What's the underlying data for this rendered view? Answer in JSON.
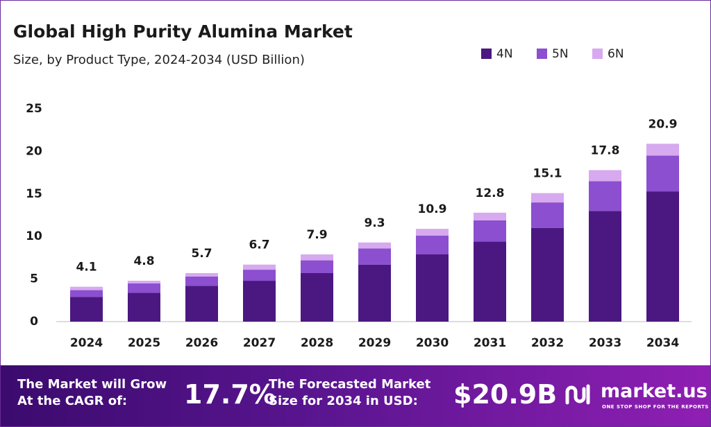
{
  "chart_data": {
    "type": "stacked-bar",
    "title": "Global High Purity Alumina Market",
    "subtitle": "Size, by Product Type, 2024-2034 (USD Billion)",
    "categories": [
      "2024",
      "2025",
      "2026",
      "2027",
      "2028",
      "2029",
      "2030",
      "2031",
      "2032",
      "2033",
      "2034"
    ],
    "series": [
      {
        "name": "4N",
        "color": "#4b1781",
        "values": [
          2.9,
          3.4,
          4.2,
          4.8,
          5.7,
          6.7,
          7.9,
          9.4,
          11.0,
          13.0,
          15.3
        ]
      },
      {
        "name": "5N",
        "color": "#8b4fd0",
        "values": [
          0.8,
          1.1,
          1.1,
          1.3,
          1.5,
          1.9,
          2.2,
          2.5,
          3.0,
          3.5,
          4.2
        ]
      },
      {
        "name": "6N",
        "color": "#d7a9ef",
        "values": [
          0.4,
          0.3,
          0.4,
          0.6,
          0.7,
          0.7,
          0.8,
          0.9,
          1.1,
          1.3,
          1.4
        ]
      }
    ],
    "totals": [
      4.1,
      4.8,
      5.7,
      6.7,
      7.9,
      9.3,
      10.9,
      12.8,
      15.1,
      17.8,
      20.9
    ],
    "ylim": [
      0,
      25
    ],
    "yticks": [
      0,
      5,
      10,
      15,
      20,
      25
    ],
    "grid": false,
    "legend": "top-right"
  },
  "footer": {
    "cagr_text": [
      "The Market will Grow",
      "At the CAGR of:"
    ],
    "cagr": "17.7%",
    "forecast_text": [
      "The Forecasted Market",
      "Size for 2034 in USD:"
    ],
    "forecast": "$20.9B",
    "brand": "market.us",
    "tagline": "ONE STOP SHOP FOR THE REPORTS"
  }
}
